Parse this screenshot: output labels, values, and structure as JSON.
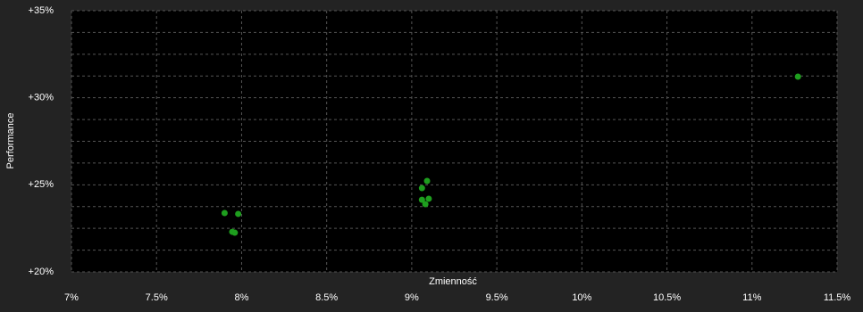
{
  "chart_data": {
    "type": "scatter",
    "x_label": "Zmienność",
    "y_label": "Performance",
    "series": [
      {
        "color": "#1e9e1e",
        "x": [
          7.9,
          7.98,
          7.945,
          7.96,
          9.06,
          9.09,
          9.06,
          9.1,
          9.08,
          11.27
        ],
        "y": [
          23.38,
          23.33,
          22.3,
          22.25,
          24.81,
          25.22,
          24.14,
          24.2,
          23.89,
          31.21
        ]
      }
    ],
    "xlim": [
      7,
      11.5
    ],
    "xticks": [
      {
        "value": 7,
        "label": "7%"
      },
      {
        "value": 7.5,
        "label": "7.5%"
      },
      {
        "value": 8,
        "label": "8%"
      },
      {
        "value": 8.5,
        "label": "8.5%"
      },
      {
        "value": 9,
        "label": "9%"
      },
      {
        "value": 9.5,
        "label": "9.5%"
      },
      {
        "value": 10,
        "label": "10%"
      },
      {
        "value": 10.5,
        "label": "10.5%"
      },
      {
        "value": 11,
        "label": "11%"
      },
      {
        "value": 11.5,
        "label": "11.5%"
      }
    ],
    "ylim": [
      20,
      35
    ],
    "yticks": [
      {
        "value": 20,
        "label": "+20%"
      },
      {
        "value": 25,
        "label": "+25%"
      },
      {
        "value": 30,
        "label": "+30%"
      },
      {
        "value": 35,
        "label": "+35%"
      }
    ],
    "y_minor_ticks": [
      21.25,
      22.5,
      23.75,
      26.25,
      27.5,
      28.75,
      31.25,
      32.5,
      33.75
    ],
    "grid": true
  }
}
